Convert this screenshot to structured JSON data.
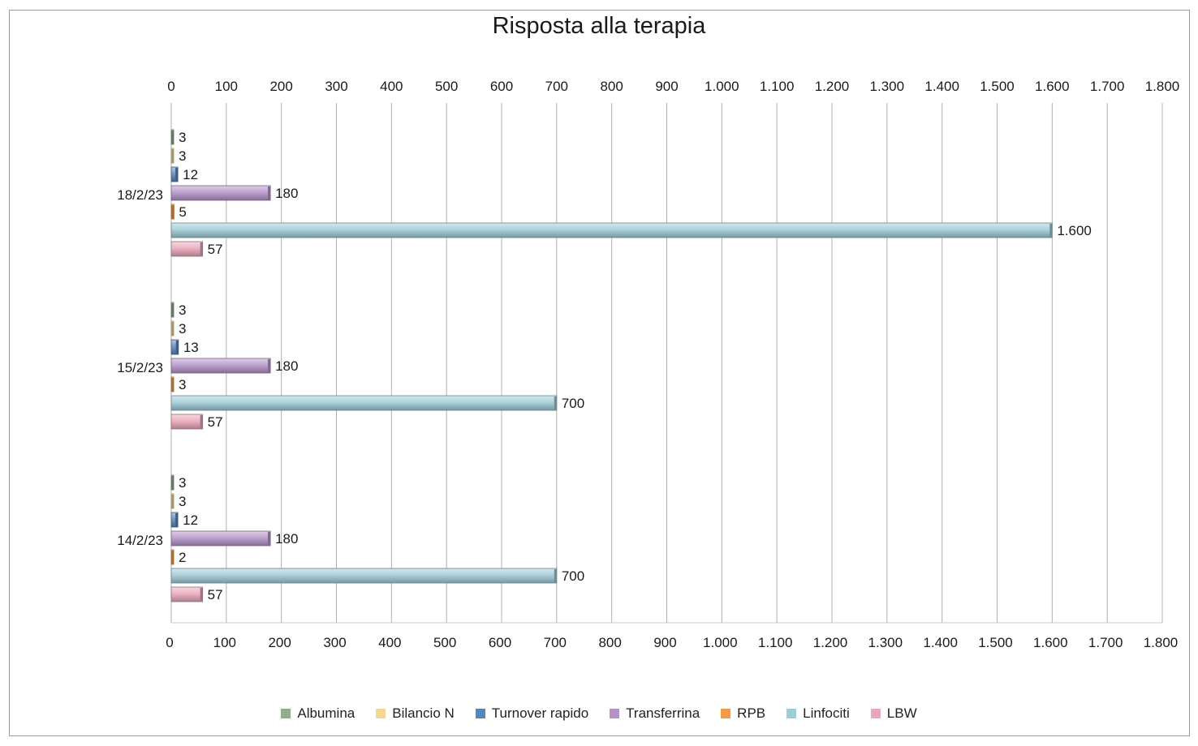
{
  "chart_data": {
    "type": "bar",
    "orientation": "horizontal",
    "title": "Risposta alla terapia",
    "xlim": [
      0,
      1800
    ],
    "xticks": [
      0,
      100,
      200,
      300,
      400,
      500,
      600,
      700,
      800,
      900,
      1000,
      1100,
      1200,
      1300,
      1400,
      1500,
      1600,
      1700,
      1800
    ],
    "xtick_labels": [
      "0",
      "100",
      "200",
      "300",
      "400",
      "500",
      "600",
      "700",
      "800",
      "900",
      "1.000",
      "1.100",
      "1.200",
      "1.300",
      "1.400",
      "1.500",
      "1.600",
      "1.700",
      "1.800"
    ],
    "axis_labels_top_and_bottom": true,
    "grid": "vertical",
    "legend_position": "bottom",
    "categories": [
      "18/2/23",
      "15/2/23",
      "14/2/23"
    ],
    "series": [
      {
        "name": "Albumina",
        "color": "#8fae8c",
        "values": [
          3,
          3,
          3
        ],
        "labels": [
          "3",
          "3",
          "3"
        ]
      },
      {
        "name": "Bilancio N",
        "color": "#f2d98f",
        "values": [
          3,
          3,
          3
        ],
        "labels": [
          "3",
          "3",
          "3"
        ]
      },
      {
        "name": "Turnover rapido",
        "color": "#5b86b8",
        "values": [
          12,
          13,
          12
        ],
        "labels": [
          "12",
          "13",
          "12"
        ]
      },
      {
        "name": "Transferrina",
        "color": "#b491c8",
        "values": [
          180,
          180,
          180
        ],
        "labels": [
          "180",
          "180",
          "180"
        ]
      },
      {
        "name": "RPB",
        "color": "#f59a4a",
        "values": [
          5,
          3,
          2
        ],
        "labels": [
          "5",
          "3",
          "2"
        ]
      },
      {
        "name": "Linfociti",
        "color": "#9fcad6",
        "values": [
          1600,
          700,
          700
        ],
        "labels": [
          "1.600",
          "700",
          "700"
        ]
      },
      {
        "name": "LBW",
        "color": "#e8a6b8",
        "values": [
          57,
          57,
          57
        ],
        "labels": [
          "57",
          "57",
          "57"
        ]
      }
    ]
  }
}
